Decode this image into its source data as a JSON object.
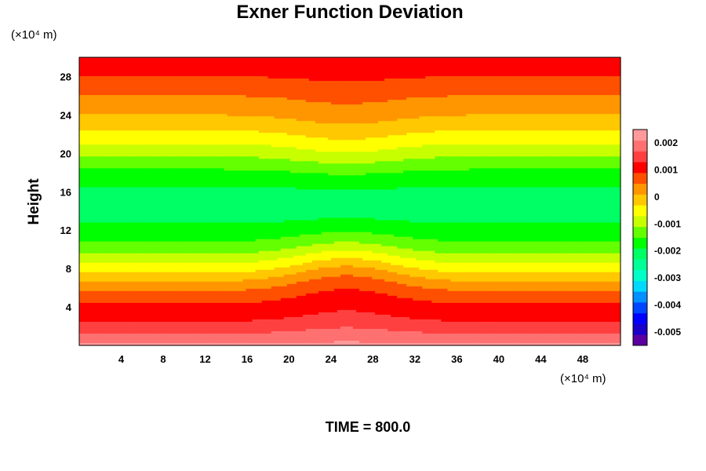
{
  "chart_data": {
    "type": "heatmap",
    "title": "Exner Function Deviation",
    "xlabel": "",
    "ylabel": "Height",
    "x_unit_label": "(×10⁴ m)",
    "y_unit_label": "(×10⁴ m)",
    "xlim": [
      0,
      51.6
    ],
    "ylim": [
      0,
      30
    ],
    "x_ticks": [
      4,
      8,
      12,
      16,
      20,
      24,
      28,
      32,
      36,
      40,
      44,
      48
    ],
    "y_ticks": [
      4,
      8,
      12,
      16,
      20,
      24,
      28
    ],
    "footer": "TIME = 800.0",
    "colorbar": {
      "range": [
        -0.0055,
        0.0025
      ],
      "tick_labels": [
        "0.002",
        "0.001",
        "0",
        "-0.001",
        "-0.002",
        "-0.003",
        "-0.004",
        "-0.005"
      ],
      "tick_values": [
        0.002,
        0.001,
        0,
        -0.001,
        -0.002,
        -0.003,
        -0.004,
        -0.005
      ],
      "palette": [
        "#5a00a0",
        "#1a00c8",
        "#0000ff",
        "#0046ff",
        "#0090ff",
        "#00d8ff",
        "#00ffc8",
        "#00ff96",
        "#00ff64",
        "#00ff00",
        "#64ff00",
        "#c8ff00",
        "#ffff00",
        "#ffc800",
        "#ff9600",
        "#ff5000",
        "#ff0000",
        "#ff4040",
        "#ff7070",
        "#ff9a9a"
      ]
    },
    "field_profile": {
      "heights": [
        0,
        1,
        2,
        4,
        6,
        8,
        10,
        12,
        14,
        16,
        18,
        20,
        22,
        24,
        26,
        28,
        29,
        30
      ],
      "values": [
        0.0022,
        0.0018,
        0.0014,
        0.001,
        0.0004,
        -0.0005,
        -0.0013,
        -0.0018,
        -0.0021,
        -0.002,
        -0.0016,
        -0.001,
        -0.0004,
        0.0001,
        0.0005,
        0.0009,
        0.0011,
        0.0012
      ]
    },
    "bump": {
      "center_x": 25.5,
      "width_x": 6,
      "description_levels_peak_height": 1.5
    }
  }
}
